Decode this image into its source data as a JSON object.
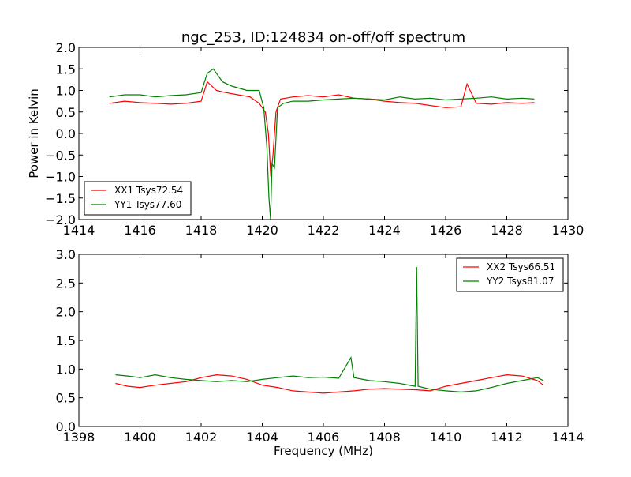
{
  "colors": {
    "red": "#ff0000",
    "green": "#008000"
  },
  "chart_data": [
    {
      "type": "line",
      "title": "ngc_253, ID:124834 on-off/off spectrum",
      "xlabel": "",
      "ylabel": "Power in Kelvin",
      "xlim": [
        1414,
        1430
      ],
      "ylim": [
        -2.0,
        2.0
      ],
      "xticks": [
        "1414",
        "1416",
        "1418",
        "1420",
        "1422",
        "1424",
        "1426",
        "1428",
        "1430"
      ],
      "yticks": [
        "−2.0",
        "−1.5",
        "−1.0",
        "−0.5",
        "0.0",
        "0.5",
        "1.0",
        "1.5",
        "2.0"
      ],
      "legend_position": "lower-left",
      "series": [
        {
          "name": "XX1 Tsys72.54",
          "color": "#ff0000",
          "x": [
            1415.0,
            1415.5,
            1416.0,
            1416.5,
            1417.0,
            1417.5,
            1418.0,
            1418.2,
            1418.5,
            1418.8,
            1419.2,
            1419.6,
            1419.9,
            1420.1,
            1420.2,
            1420.28,
            1420.35,
            1420.45,
            1420.6,
            1421.0,
            1421.5,
            1422.0,
            1422.5,
            1423.0,
            1423.5,
            1424.0,
            1424.5,
            1425.0,
            1425.5,
            1426.0,
            1426.5,
            1426.7,
            1427.0,
            1427.5,
            1428.0,
            1428.5,
            1428.9
          ],
          "y": [
            0.7,
            0.75,
            0.72,
            0.7,
            0.68,
            0.7,
            0.75,
            1.2,
            1.0,
            0.95,
            0.9,
            0.85,
            0.7,
            0.5,
            0.0,
            -1.0,
            -0.5,
            0.5,
            0.8,
            0.85,
            0.88,
            0.85,
            0.9,
            0.82,
            0.8,
            0.75,
            0.72,
            0.7,
            0.65,
            0.6,
            0.62,
            1.15,
            0.7,
            0.68,
            0.72,
            0.7,
            0.72
          ]
        },
        {
          "name": "YY1 Tsys77.60",
          "color": "#008000",
          "x": [
            1415.0,
            1415.5,
            1416.0,
            1416.5,
            1417.0,
            1417.5,
            1418.0,
            1418.2,
            1418.4,
            1418.7,
            1419.0,
            1419.5,
            1419.9,
            1420.05,
            1420.15,
            1420.22,
            1420.27,
            1420.32,
            1420.4,
            1420.5,
            1420.7,
            1421.0,
            1421.5,
            1422.0,
            1422.5,
            1423.0,
            1423.5,
            1424.0,
            1424.5,
            1425.0,
            1425.5,
            1426.0,
            1426.5,
            1427.0,
            1427.5,
            1428.0,
            1428.5,
            1428.9
          ],
          "y": [
            0.85,
            0.9,
            0.9,
            0.85,
            0.88,
            0.9,
            0.95,
            1.4,
            1.5,
            1.2,
            1.1,
            1.0,
            1.0,
            0.6,
            -0.3,
            -1.5,
            -2.0,
            -0.7,
            -0.8,
            0.6,
            0.7,
            0.75,
            0.75,
            0.78,
            0.8,
            0.82,
            0.8,
            0.78,
            0.85,
            0.8,
            0.82,
            0.78,
            0.8,
            0.82,
            0.85,
            0.8,
            0.82,
            0.8
          ]
        }
      ]
    },
    {
      "type": "line",
      "title": "",
      "xlabel": "Frequency (MHz)",
      "ylabel": "",
      "xlim": [
        1398,
        1414
      ],
      "ylim": [
        0.0,
        3.0
      ],
      "xticks": [
        "1398",
        "1400",
        "1402",
        "1404",
        "1406",
        "1408",
        "1410",
        "1412",
        "1414"
      ],
      "yticks": [
        "0.0",
        "0.5",
        "1.0",
        "1.5",
        "2.0",
        "2.5",
        "3.0"
      ],
      "legend_position": "upper-right",
      "series": [
        {
          "name": "XX2 Tsys66.51",
          "color": "#ff0000",
          "x": [
            1399.2,
            1399.6,
            1400.0,
            1400.5,
            1401.0,
            1401.5,
            1402.0,
            1402.5,
            1403.0,
            1403.5,
            1404.0,
            1404.5,
            1405.0,
            1405.5,
            1406.0,
            1406.5,
            1407.0,
            1407.5,
            1408.0,
            1408.5,
            1409.0,
            1409.5,
            1410.0,
            1410.5,
            1411.0,
            1411.5,
            1412.0,
            1412.5,
            1413.0,
            1413.2
          ],
          "y": [
            0.75,
            0.7,
            0.68,
            0.72,
            0.75,
            0.78,
            0.85,
            0.9,
            0.88,
            0.82,
            0.72,
            0.68,
            0.62,
            0.6,
            0.58,
            0.6,
            0.62,
            0.65,
            0.66,
            0.65,
            0.64,
            0.62,
            0.7,
            0.75,
            0.8,
            0.85,
            0.9,
            0.88,
            0.8,
            0.72
          ]
        },
        {
          "name": "YY2 Tsys81.07",
          "color": "#008000",
          "x": [
            1399.2,
            1399.6,
            1400.0,
            1400.5,
            1401.0,
            1401.5,
            1402.0,
            1402.5,
            1403.0,
            1403.5,
            1404.0,
            1404.5,
            1405.0,
            1405.5,
            1406.0,
            1406.5,
            1406.9,
            1407.0,
            1407.5,
            1408.0,
            1408.5,
            1409.0,
            1409.05,
            1409.1,
            1409.5,
            1410.0,
            1410.5,
            1411.0,
            1411.5,
            1412.0,
            1412.5,
            1413.0,
            1413.2
          ],
          "y": [
            0.9,
            0.88,
            0.85,
            0.9,
            0.85,
            0.82,
            0.8,
            0.78,
            0.8,
            0.78,
            0.82,
            0.85,
            0.88,
            0.85,
            0.86,
            0.84,
            1.2,
            0.85,
            0.8,
            0.78,
            0.75,
            0.7,
            2.78,
            0.7,
            0.65,
            0.62,
            0.6,
            0.62,
            0.68,
            0.75,
            0.8,
            0.85,
            0.8
          ]
        }
      ]
    }
  ]
}
